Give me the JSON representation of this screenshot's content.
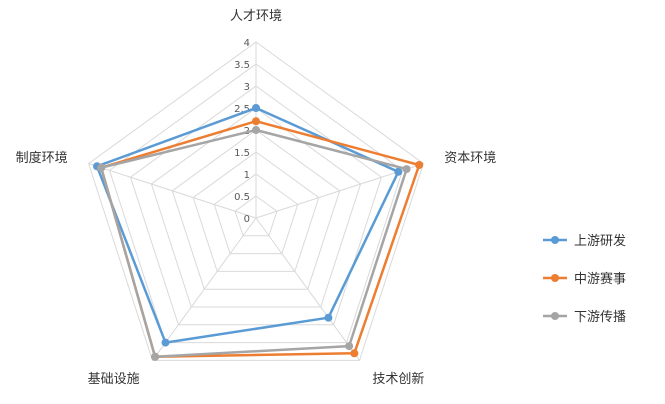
{
  "chart_data": {
    "type": "radar",
    "axes": [
      "人才环境",
      "资本环境",
      "技术创新",
      "基础设施",
      "制度环境"
    ],
    "rlim": [
      0,
      4
    ],
    "ticks": [
      "0",
      "0.5",
      "1",
      "1.5",
      "2",
      "2.5",
      "3",
      "3.5",
      "4"
    ],
    "series": [
      {
        "name": "上游研发",
        "color": "#5b9bd5",
        "values": [
          2.5,
          3.4,
          2.8,
          3.5,
          3.8
        ]
      },
      {
        "name": "中游赛事",
        "color": "#ed7d31",
        "values": [
          2.2,
          3.9,
          3.8,
          3.9,
          3.7
        ]
      },
      {
        "name": "下游传播",
        "color": "#a5a5a5",
        "values": [
          2.0,
          3.6,
          3.6,
          3.9,
          3.7
        ]
      }
    ],
    "legend_position": "right",
    "grid": true
  }
}
